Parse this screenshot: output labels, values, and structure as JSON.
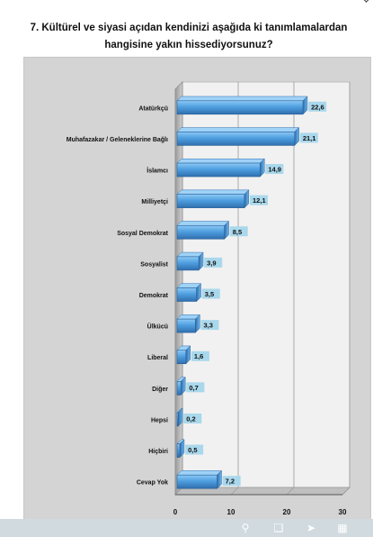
{
  "title": {
    "line1": "7. Kültürel ve siyasi açıdan kendinizi aşağıda ki tanımlamalardan",
    "line2": "hangisine yakın hissediyorsunuz?"
  },
  "chart_data": {
    "type": "bar",
    "orientation": "horizontal",
    "title": "7. Kültürel ve siyasi açıdan kendinizi aşağıda ki tanımlamalardan hangisine yakın hissediyorsunuz?",
    "categories": [
      "Atatürkçü",
      "Muhafazakar / Geleneklerine Bağlı",
      "İslamcı",
      "Milliyetçi",
      "Sosyal Demokrat",
      "Sosyalist",
      "Demokrat",
      "Ülkücü",
      "Liberal",
      "Diğer",
      "Hepsi",
      "Hiçbiri",
      "Cevap Yok"
    ],
    "values": [
      22.6,
      21.1,
      14.9,
      12.1,
      8.5,
      3.9,
      3.5,
      3.3,
      1.6,
      0.7,
      0.2,
      0.5,
      7.2
    ],
    "value_labels": [
      "22,6",
      "21,1",
      "14,9",
      "12,1",
      "8,5",
      "3,9",
      "3,5",
      "3,3",
      "1,6",
      "0,7",
      "0,2",
      "0,5",
      "7,2"
    ],
    "xlim": [
      0,
      30
    ],
    "xticks": [
      "0",
      "10",
      "20",
      "30"
    ],
    "grid": true,
    "legend": "none",
    "colors": {
      "bar": "#4f9fe0",
      "bar_dark": "#2f6fae",
      "label_bg": "#a9d8ec",
      "plot_wall": "#f1f1f1",
      "frame": "#d4d4d4",
      "toolbar": "#d0dadf"
    }
  },
  "toolbar": {
    "icons": [
      "zoom-icon",
      "copy-icon",
      "share-icon",
      "grid-icon"
    ]
  }
}
